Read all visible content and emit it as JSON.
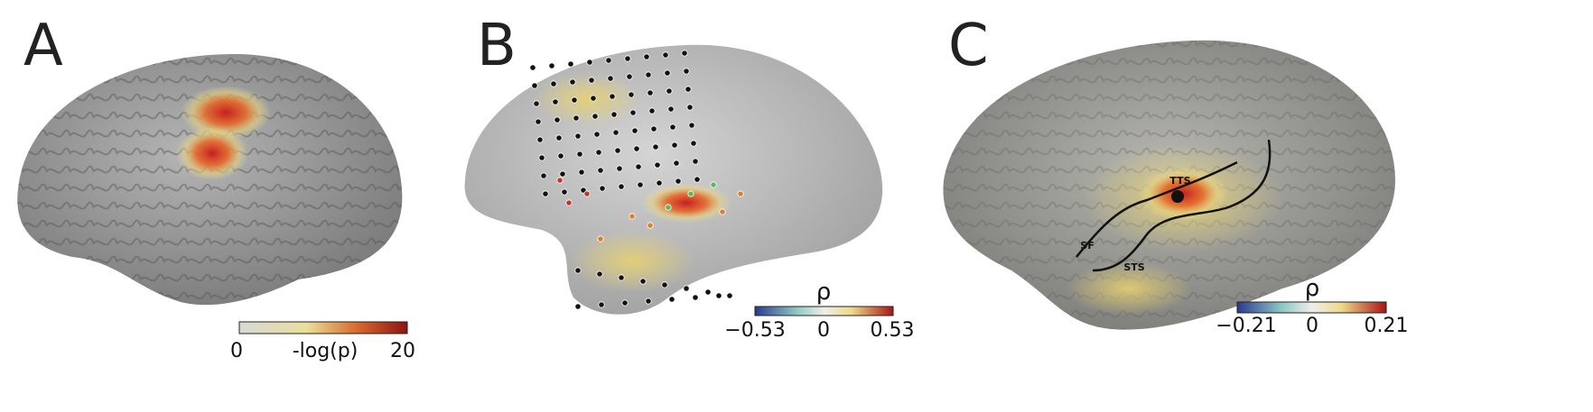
{
  "panels": [
    {
      "label": "A",
      "colorbar": {
        "ticks": [
          "0",
          "-log(p)",
          "20"
        ]
      }
    },
    {
      "label": "B",
      "colorbar": {
        "symbol": "ρ",
        "ticks": [
          "−0.53",
          "0",
          "0.53"
        ]
      }
    },
    {
      "label": "C",
      "colorbar": {
        "symbol": "ρ",
        "ticks": [
          "−0.21",
          "0",
          "0.21"
        ]
      },
      "annotations": [
        "TTS",
        "SF",
        "STS"
      ]
    }
  ]
}
